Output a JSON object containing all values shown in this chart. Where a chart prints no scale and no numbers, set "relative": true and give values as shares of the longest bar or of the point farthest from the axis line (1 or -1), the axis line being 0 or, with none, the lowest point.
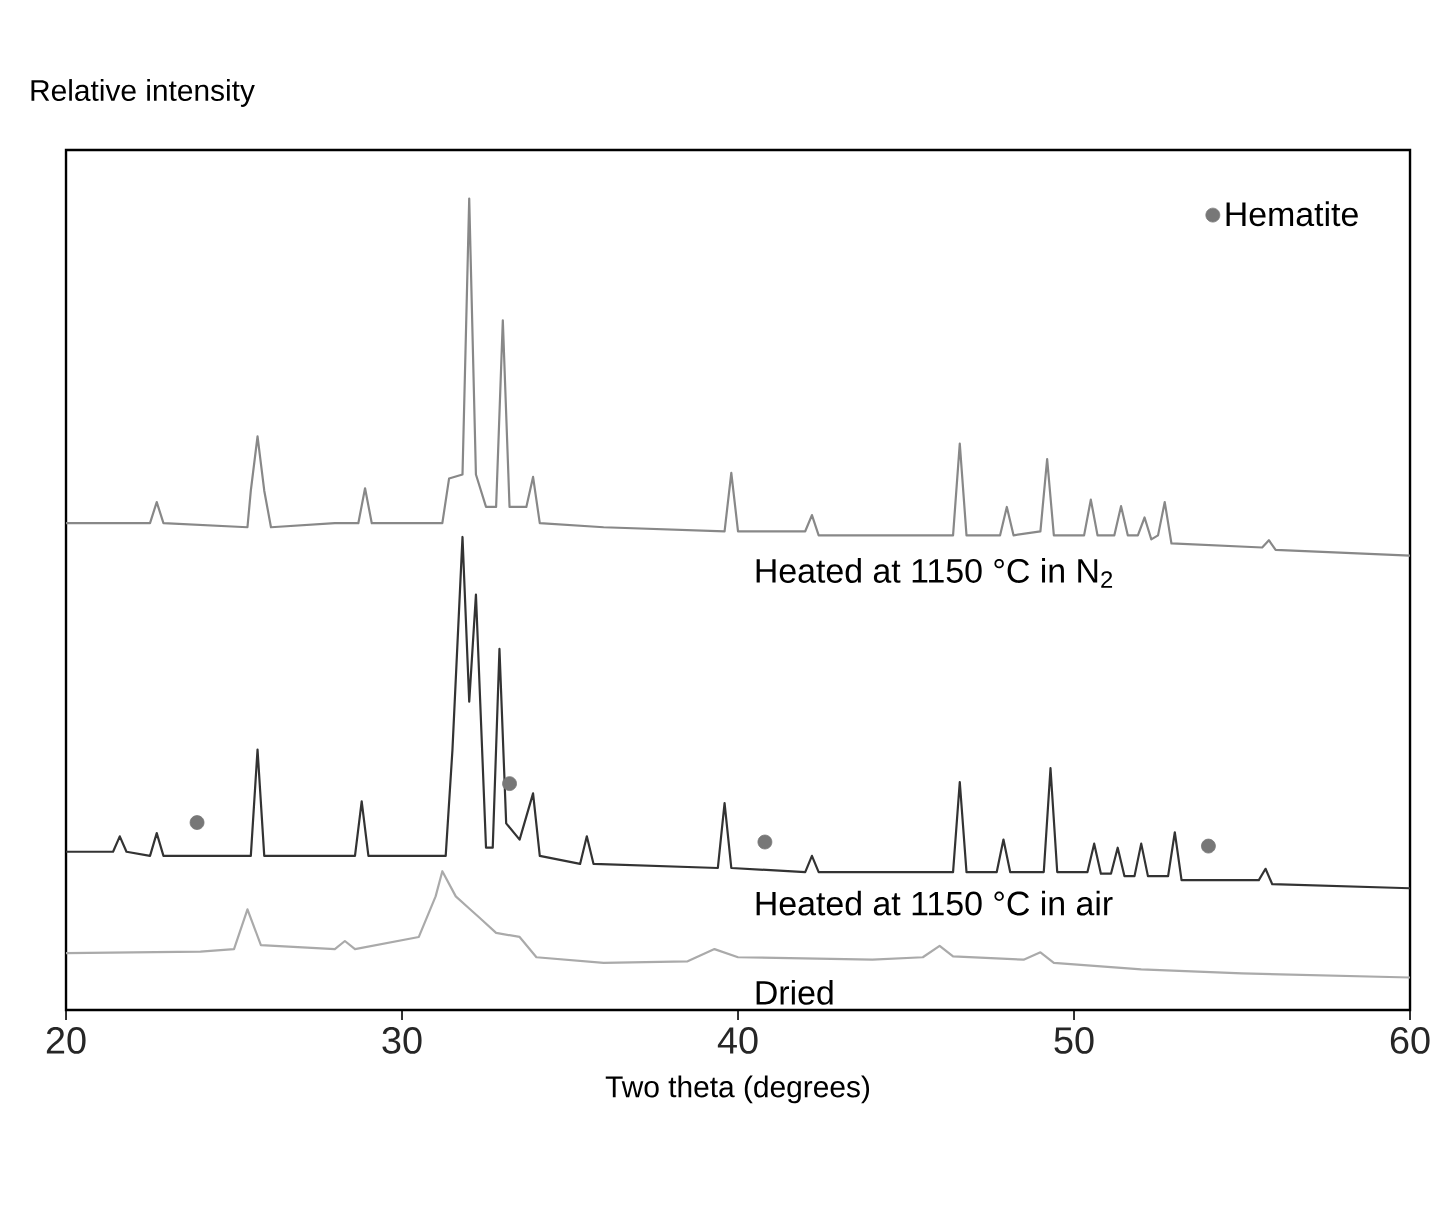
{
  "chart_data": {
    "type": "line",
    "relative": true,
    "ylabel": "Relative intensity",
    "xlabel": "Two theta (degrees)",
    "xlim": [
      20,
      60
    ],
    "xticks": [
      20,
      30,
      40,
      50,
      60
    ],
    "legend": "top right",
    "grid": false,
    "series": [
      {
        "name": "Heated at 1150 °C in N$_{2}$",
        "color": "#888888",
        "marker": "none",
        "x": [
          20.0,
          21.5,
          22.5,
          22.7,
          22.9,
          25.4,
          25.5,
          25.7,
          25.9,
          26.1,
          28.0,
          28.7,
          28.9,
          29.1,
          31.2,
          31.4,
          31.8,
          32.0,
          32.2,
          32.5,
          32.8,
          33.0,
          33.2,
          33.7,
          33.9,
          34.1,
          36.0,
          39.6,
          39.8,
          40.0,
          42.0,
          42.2,
          42.4,
          46.4,
          46.6,
          46.8,
          47.8,
          48.0,
          48.2,
          49.0,
          49.2,
          49.4,
          50.3,
          50.5,
          50.7,
          51.2,
          51.4,
          51.6,
          51.9,
          52.1,
          52.3,
          52.5,
          52.7,
          52.9,
          55.6,
          55.8,
          56.0,
          60.0
        ],
        "values": [
          0.6,
          0.6,
          0.6,
          0.626,
          0.6,
          0.595,
          0.64,
          0.707,
          0.64,
          0.595,
          0.6,
          0.6,
          0.643,
          0.6,
          0.6,
          0.655,
          0.66,
          1.0,
          0.66,
          0.62,
          0.62,
          0.85,
          0.62,
          0.62,
          0.657,
          0.6,
          0.595,
          0.59,
          0.662,
          0.59,
          0.59,
          0.61,
          0.585,
          0.585,
          0.698,
          0.585,
          0.585,
          0.62,
          0.585,
          0.59,
          0.679,
          0.585,
          0.585,
          0.629,
          0.585,
          0.585,
          0.621,
          0.585,
          0.585,
          0.607,
          0.58,
          0.585,
          0.626,
          0.575,
          0.57,
          0.579,
          0.567,
          0.56
        ]
      },
      {
        "name": "Heated at 1150 °C in air",
        "color": "#333333",
        "marker": "none",
        "x": [
          20.0,
          21.4,
          21.6,
          21.8,
          22.5,
          22.7,
          22.9,
          25.5,
          25.7,
          25.9,
          28.6,
          28.8,
          29.0,
          31.3,
          31.5,
          31.8,
          32.0,
          32.2,
          32.5,
          32.7,
          32.9,
          33.1,
          33.5,
          33.9,
          34.1,
          35.3,
          35.5,
          35.7,
          39.4,
          39.6,
          39.8,
          42.0,
          42.2,
          42.4,
          46.4,
          46.6,
          46.8,
          47.7,
          47.9,
          48.1,
          49.1,
          49.3,
          49.5,
          50.4,
          50.6,
          50.8,
          51.1,
          51.3,
          51.5,
          51.8,
          52.0,
          52.2,
          52.8,
          53.0,
          53.2,
          55.5,
          55.7,
          55.9,
          60.0
        ],
        "values": [
          0.195,
          0.195,
          0.214,
          0.195,
          0.19,
          0.218,
          0.19,
          0.19,
          0.321,
          0.19,
          0.19,
          0.257,
          0.19,
          0.19,
          0.32,
          0.583,
          0.38,
          0.512,
          0.2,
          0.2,
          0.445,
          0.23,
          0.21,
          0.267,
          0.19,
          0.18,
          0.214,
          0.18,
          0.175,
          0.255,
          0.175,
          0.17,
          0.19,
          0.17,
          0.17,
          0.281,
          0.17,
          0.17,
          0.21,
          0.17,
          0.17,
          0.298,
          0.17,
          0.17,
          0.205,
          0.168,
          0.168,
          0.2,
          0.165,
          0.165,
          0.205,
          0.165,
          0.165,
          0.219,
          0.16,
          0.16,
          0.174,
          0.155,
          0.15
        ]
      },
      {
        "name": "Dried",
        "color": "#aaaaaa",
        "marker": "none",
        "x": [
          20.0,
          24.0,
          25.0,
          25.4,
          25.8,
          28.0,
          28.3,
          28.6,
          30.5,
          31.0,
          31.2,
          31.6,
          32.0,
          32.3,
          32.8,
          33.5,
          34.0,
          36.0,
          38.5,
          39.3,
          40.0,
          44.0,
          45.5,
          46.0,
          46.4,
          48.5,
          49.0,
          49.4,
          52.0,
          55.0,
          60.0
        ],
        "values": [
          0.07,
          0.072,
          0.075,
          0.124,
          0.08,
          0.075,
          0.085,
          0.075,
          0.09,
          0.14,
          0.171,
          0.14,
          0.125,
          0.114,
          0.095,
          0.09,
          0.065,
          0.058,
          0.06,
          0.075,
          0.065,
          0.062,
          0.065,
          0.079,
          0.066,
          0.062,
          0.071,
          0.058,
          0.05,
          0.045,
          0.04
        ]
      },
      {
        "name": "Hematite",
        "type": "scatter",
        "color": "#777777",
        "marker": "circle",
        "x": [
          23.9,
          33.2,
          40.8,
          54.0
        ],
        "values": [
          0.231,
          0.279,
          0.207,
          0.202
        ]
      }
    ]
  }
}
